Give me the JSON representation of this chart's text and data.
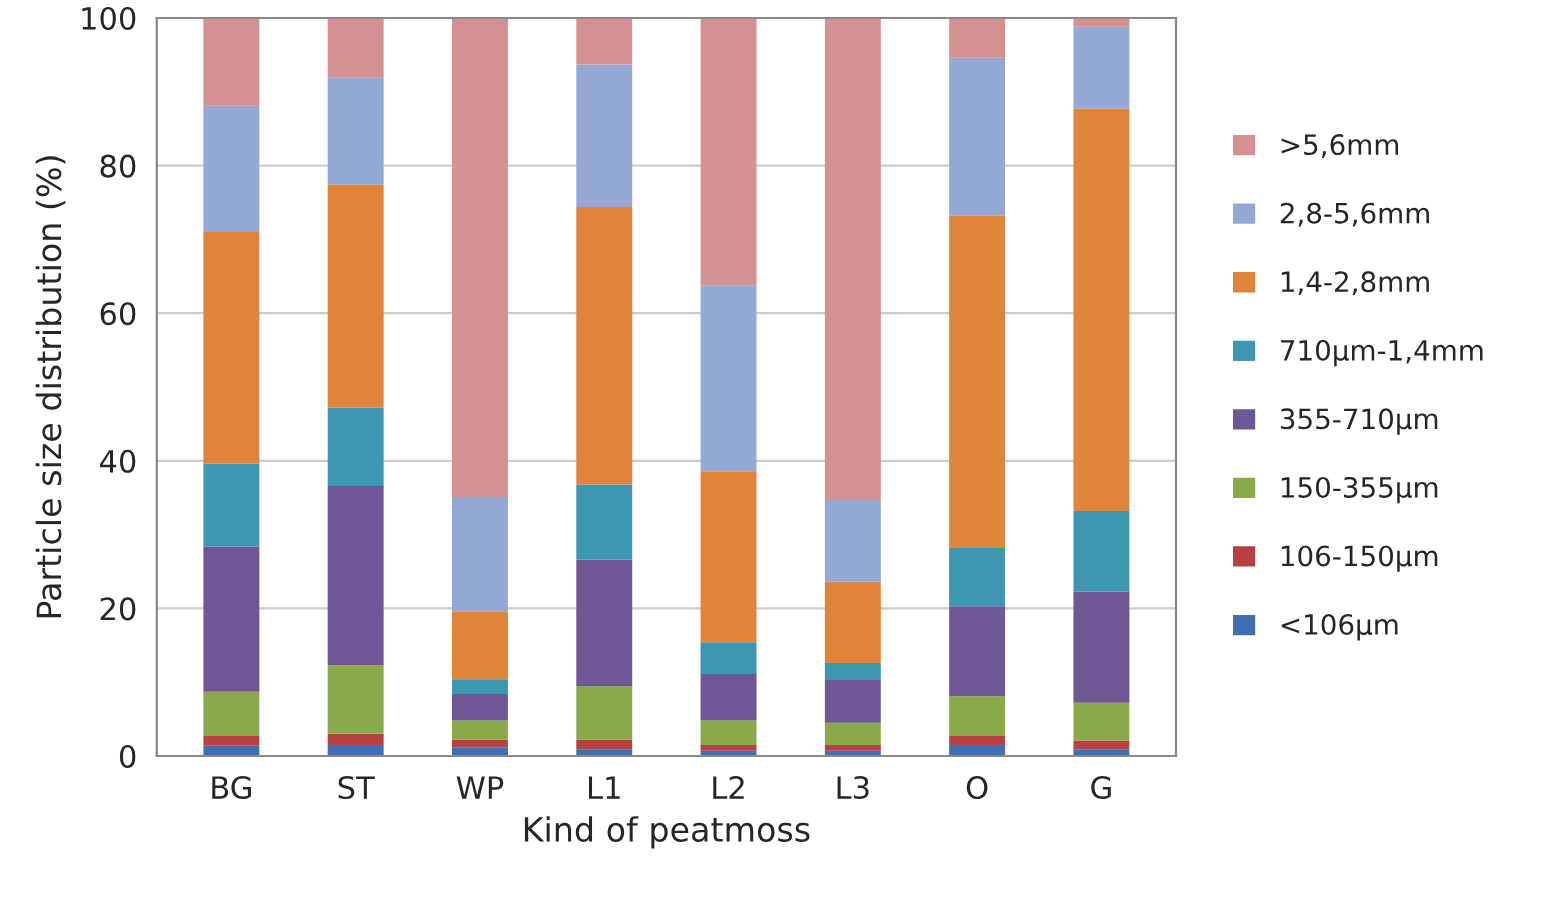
{
  "chart_data": {
    "type": "bar",
    "stacked": true,
    "xlabel": "Kind of peatmoss",
    "ylabel": "Particle size distribution (%)",
    "categories": [
      "BG",
      "ST",
      "WP",
      "L1",
      "L2",
      "L3",
      "O",
      "G"
    ],
    "series": [
      {
        "name": "<106μm",
        "color": "#3e6fb0",
        "values": [
          1.4,
          1.5,
          1.2,
          0.9,
          0.7,
          0.7,
          1.5,
          0.9
        ]
      },
      {
        "name": "106-150μm",
        "color": "#b94040",
        "values": [
          1.3,
          1.5,
          1.0,
          1.3,
          0.8,
          0.8,
          1.2,
          1.2
        ]
      },
      {
        "name": "150-355μm",
        "color": "#8aa94a",
        "values": [
          6.0,
          9.3,
          2.6,
          7.3,
          3.3,
          3.0,
          5.4,
          5.1
        ]
      },
      {
        "name": "355-710μm",
        "color": "#6e5794",
        "values": [
          19.7,
          24.3,
          3.6,
          17.1,
          6.3,
          5.8,
          12.2,
          15.1
        ]
      },
      {
        "name": "710μm-1,4mm",
        "color": "#3d97b0",
        "values": [
          11.2,
          10.6,
          2.0,
          10.2,
          4.3,
          2.3,
          7.9,
          10.9
        ]
      },
      {
        "name": "1,4-2,8mm",
        "color": "#e0843a",
        "values": [
          31.4,
          30.2,
          9.2,
          37.6,
          23.2,
          11.0,
          45.0,
          54.5
        ]
      },
      {
        "name": "2,8-5,6mm",
        "color": "#93a9d4",
        "values": [
          17.1,
          14.5,
          15.5,
          19.3,
          25.2,
          11.1,
          21.4,
          11.1
        ]
      },
      {
        "name": ">5,6mm",
        "color": "#d49191",
        "values": [
          11.9,
          8.1,
          64.9,
          6.3,
          36.2,
          65.3,
          5.4,
          1.2
        ]
      }
    ],
    "ylim": [
      0,
      100
    ],
    "yticks": [
      0,
      20,
      40,
      60,
      80,
      100
    ],
    "grid": "y",
    "legend": "right"
  }
}
